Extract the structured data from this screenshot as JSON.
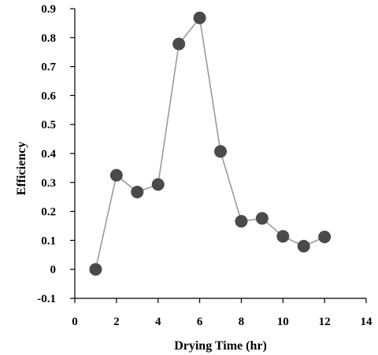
{
  "chart_data": {
    "type": "line",
    "xlabel": "Drying Time (hr)",
    "ylabel": "Efficiency",
    "xlim": [
      0,
      14
    ],
    "ylim": [
      -0.1,
      0.9
    ],
    "xticks": [
      "0",
      "2",
      "4",
      "6",
      "8",
      "10",
      "12",
      "14"
    ],
    "yticks": [
      "-0.1",
      "0",
      "0.1",
      "0.2",
      "0.3",
      "0.4",
      "0.5",
      "0.6",
      "0.7",
      "0.8",
      "0.9"
    ],
    "grid": false,
    "legend": "none",
    "series": [
      {
        "x": [
          1,
          2,
          3,
          4,
          5,
          6,
          7,
          8,
          9,
          10,
          11,
          12
        ],
        "y": [
          0.0,
          0.325,
          0.267,
          0.293,
          0.778,
          0.868,
          0.407,
          0.166,
          0.176,
          0.114,
          0.08,
          0.112
        ],
        "marker_color": "#4a4a4a",
        "line_color": "#9a9a9a"
      }
    ]
  }
}
